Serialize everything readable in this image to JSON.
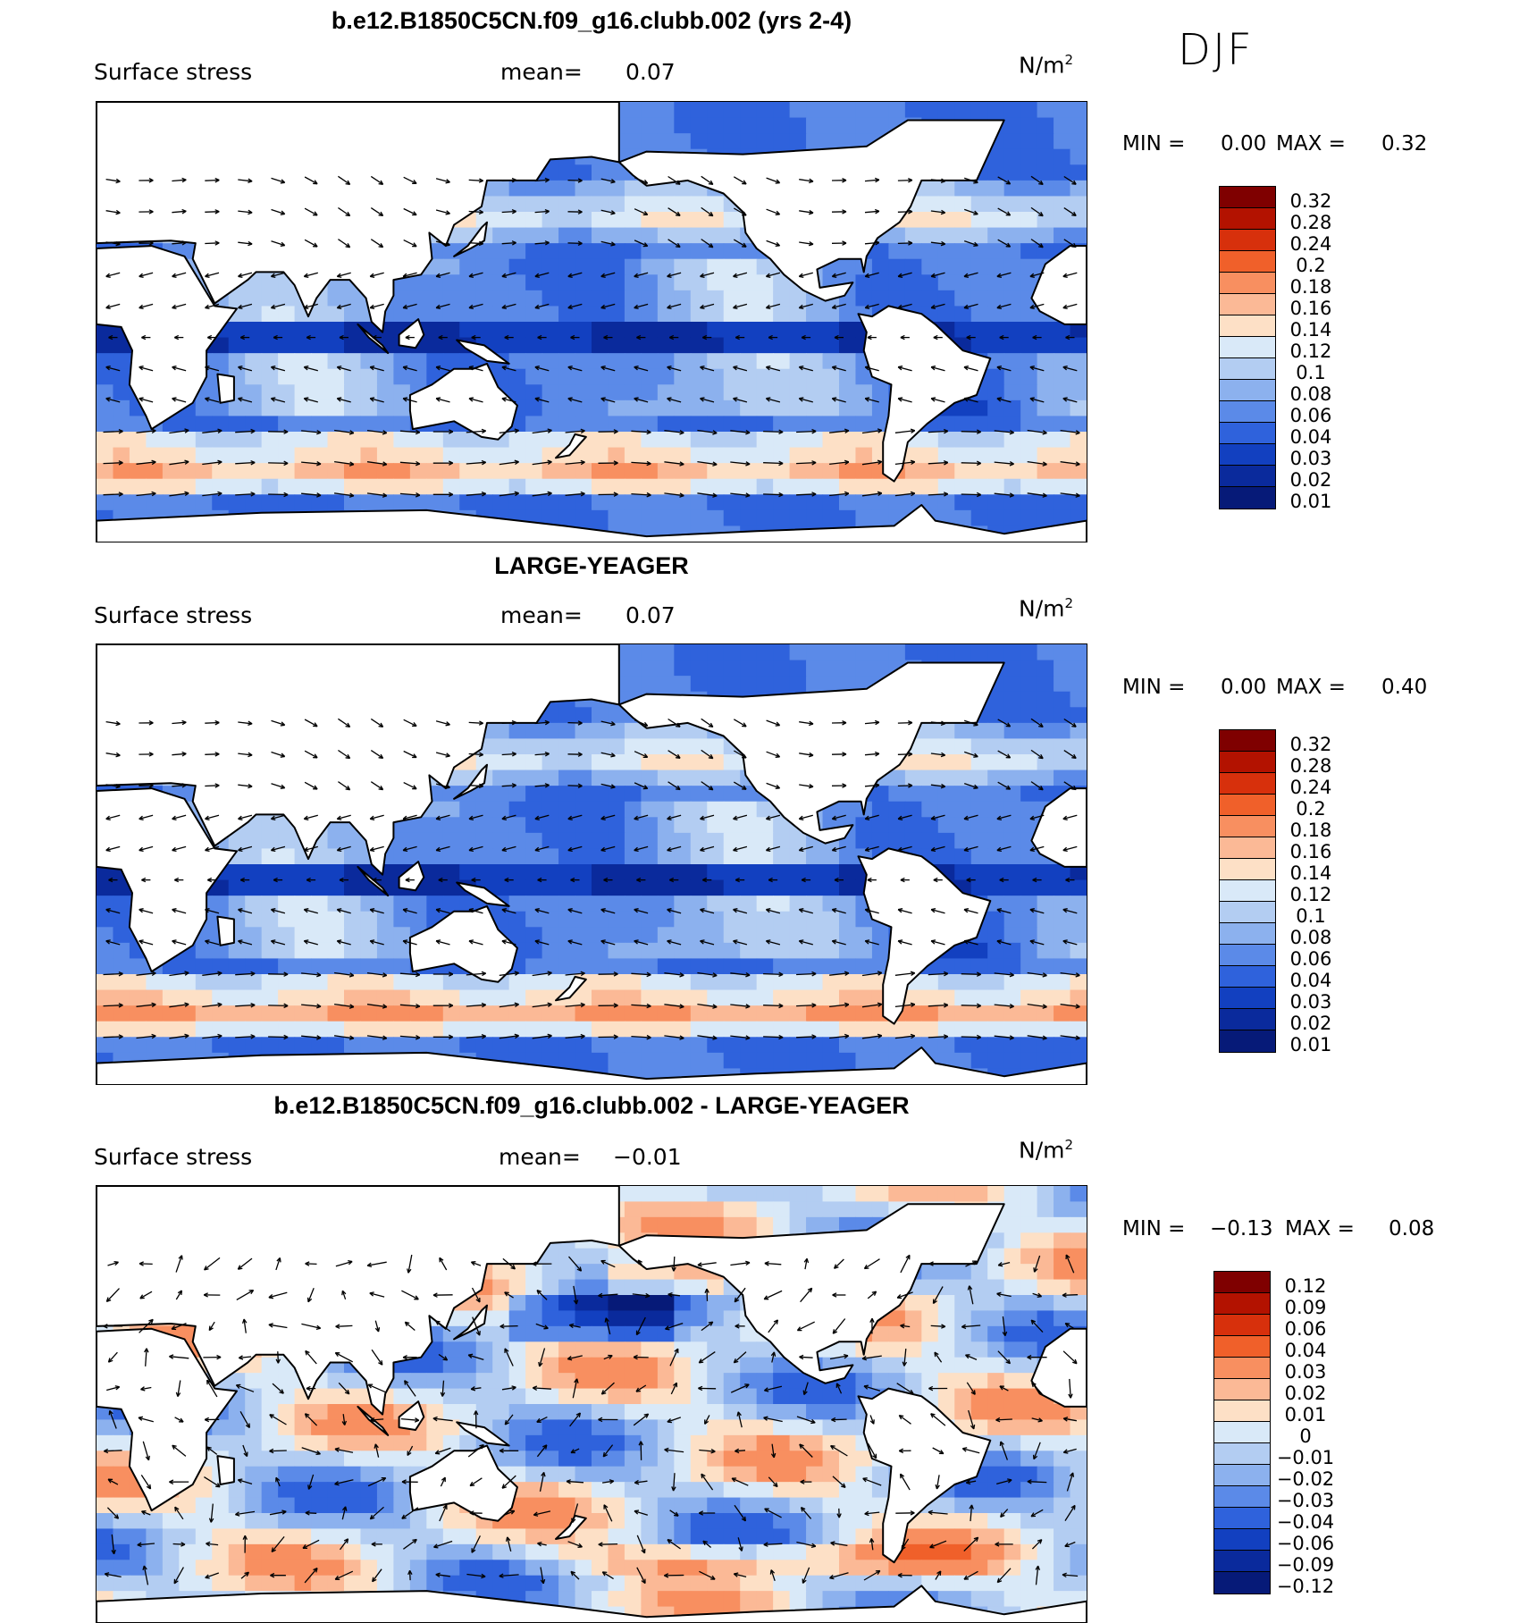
{
  "season": "DJF",
  "panels": [
    {
      "title": "b.e12.B1850C5CN.f09_g16.clubb.002 (yrs 2-4)",
      "field": "Surface stress",
      "mean_label": "mean=",
      "mean_value": "0.07",
      "units_base": "N/m",
      "units_exp": "2",
      "min_label": "MIN =",
      "min_value": "0.00",
      "max_label": "MAX =",
      "max_value": "0.32",
      "colorbar": {
        "colors": [
          "#7f0000",
          "#b31200",
          "#d7300c",
          "#f0602a",
          "#f88f60",
          "#fbb996",
          "#fde0c6",
          "#d9e9f8",
          "#b3cdf2",
          "#8cb1ee",
          "#5b8ae8",
          "#2f62dc",
          "#1240c0",
          "#0a2a9c",
          "#061a78"
        ],
        "labels": [
          "0.32",
          "0.28",
          "0.24",
          "0.2",
          "0.18",
          "0.16",
          "0.14",
          "0.12",
          "0.1",
          "0.08",
          "0.06",
          "0.04",
          "0.03",
          "0.02",
          "0.01"
        ]
      }
    },
    {
      "title": "LARGE-YEAGER",
      "field": "Surface stress",
      "mean_label": "mean=",
      "mean_value": "0.07",
      "units_base": "N/m",
      "units_exp": "2",
      "min_label": "MIN =",
      "min_value": "0.00",
      "max_label": "MAX =",
      "max_value": "0.40",
      "colorbar": {
        "colors": [
          "#7f0000",
          "#b31200",
          "#d7300c",
          "#f0602a",
          "#f88f60",
          "#fbb996",
          "#fde0c6",
          "#d9e9f8",
          "#b3cdf2",
          "#8cb1ee",
          "#5b8ae8",
          "#2f62dc",
          "#1240c0",
          "#0a2a9c",
          "#061a78"
        ],
        "labels": [
          "0.32",
          "0.28",
          "0.24",
          "0.2",
          "0.18",
          "0.16",
          "0.14",
          "0.12",
          "0.1",
          "0.08",
          "0.06",
          "0.04",
          "0.03",
          "0.02",
          "0.01"
        ]
      }
    },
    {
      "title": "b.e12.B1850C5CN.f09_g16.clubb.002 - LARGE-YEAGER",
      "field": "Surface stress",
      "mean_label": "mean=",
      "mean_value": "−0.01",
      "units_base": "N/m",
      "units_exp": "2",
      "min_label": "MIN =",
      "min_value": "−0.13",
      "max_label": "MAX =",
      "max_value": "0.08",
      "colorbar": {
        "colors": [
          "#7f0000",
          "#b31200",
          "#d7300c",
          "#f0602a",
          "#f88f60",
          "#fbb996",
          "#fde0c6",
          "#d9e9f8",
          "#b3cdf2",
          "#8cb1ee",
          "#5b8ae8",
          "#2f62dc",
          "#1240c0",
          "#0a2a9c",
          "#061a78"
        ],
        "labels": [
          "0.12",
          "0.09",
          "0.06",
          "0.04",
          "0.03",
          "0.02",
          "0.01",
          "0",
          "−0.01",
          "−0.02",
          "−0.03",
          "−0.04",
          "−0.06",
          "−0.09",
          "−0.12"
        ]
      }
    }
  ],
  "style": {
    "land": "#ffffff",
    "coast": "#000000",
    "arrow": "#000000"
  }
}
